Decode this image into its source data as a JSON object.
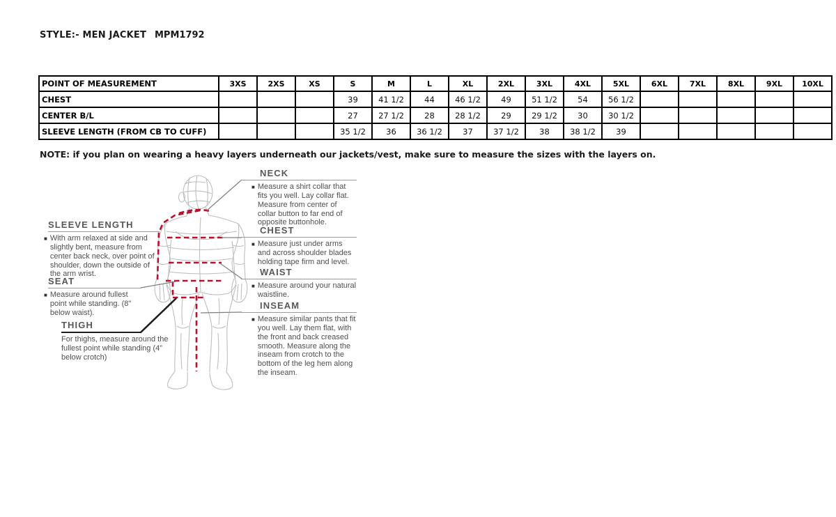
{
  "page": {
    "title": "STYLE:- MEN JACKET",
    "style_code": "MPM1792",
    "note": "NOTE: if you plan on wearing a heavy layers underneath our jackets/vest, make sure to measure the sizes with the layers on."
  },
  "size_table": {
    "columns": [
      "POINT OF MEASUREMENT",
      "3XS",
      "2XS",
      "XS",
      "S",
      "M",
      "L",
      "XL",
      "2XL",
      "3XL",
      "4XL",
      "5XL",
      "6XL",
      "7XL",
      "8XL",
      "9XL",
      "10XL"
    ],
    "rows": [
      {
        "label": "CHEST",
        "values": [
          "",
          "",
          "",
          "39",
          "41 1/2",
          "44",
          "46 1/2",
          "49",
          "51 1/2",
          "54",
          "56 1/2",
          "",
          "",
          "",
          "",
          ""
        ]
      },
      {
        "label": "CENTER B/L",
        "values": [
          "",
          "",
          "",
          "27",
          "27 1/2",
          "28",
          "28 1/2",
          "29",
          "29 1/2",
          "30",
          "30 1/2",
          "",
          "",
          "",
          "",
          ""
        ]
      },
      {
        "label": "SLEEVE LENGTH (FROM CB TO CUFF)",
        "values": [
          "",
          "",
          "",
          "35 1/2",
          "36",
          "36 1/2",
          "37",
          "37 1/2",
          "38",
          "38 1/2",
          "39",
          "",
          "",
          "",
          "",
          ""
        ]
      }
    ]
  },
  "measurement_guide": {
    "sections": [
      {
        "title": "NECK",
        "text": "Measure a shirt collar that fits you well. Lay collar flat. Measure from center of collar button to far end of opposite buttonhole."
      },
      {
        "title": "CHEST",
        "text": "Measure just under arms and across shoulder blades holding tape firm and level."
      },
      {
        "title": "WAIST",
        "text": "Measure around your natural waistline."
      },
      {
        "title": "INSEAM",
        "text": "Measure similar pants that fit you well. Lay them flat, with the front and back creased smooth. Measure along the inseam from crotch to the bottom of the leg hem along the inseam."
      },
      {
        "title": "SLEEVE LENGTH",
        "text": "With arm relaxed at side and slightly bent, measure from center back neck, over point of shoulder, down the outside of the arm wrist."
      },
      {
        "title": "SEAT",
        "text": "Measure around fullest point while standing. (8\" below waist)."
      },
      {
        "title": "THIGH",
        "text": "For thighs, measure around the fullest point while standing (4” below crotch)"
      }
    ]
  },
  "colors": {
    "measure_line": "#b5122d",
    "figure_outline": "#bcbfbf",
    "leader_line": "#7f7f7f",
    "thigh_leader": "#1c1c1c"
  }
}
